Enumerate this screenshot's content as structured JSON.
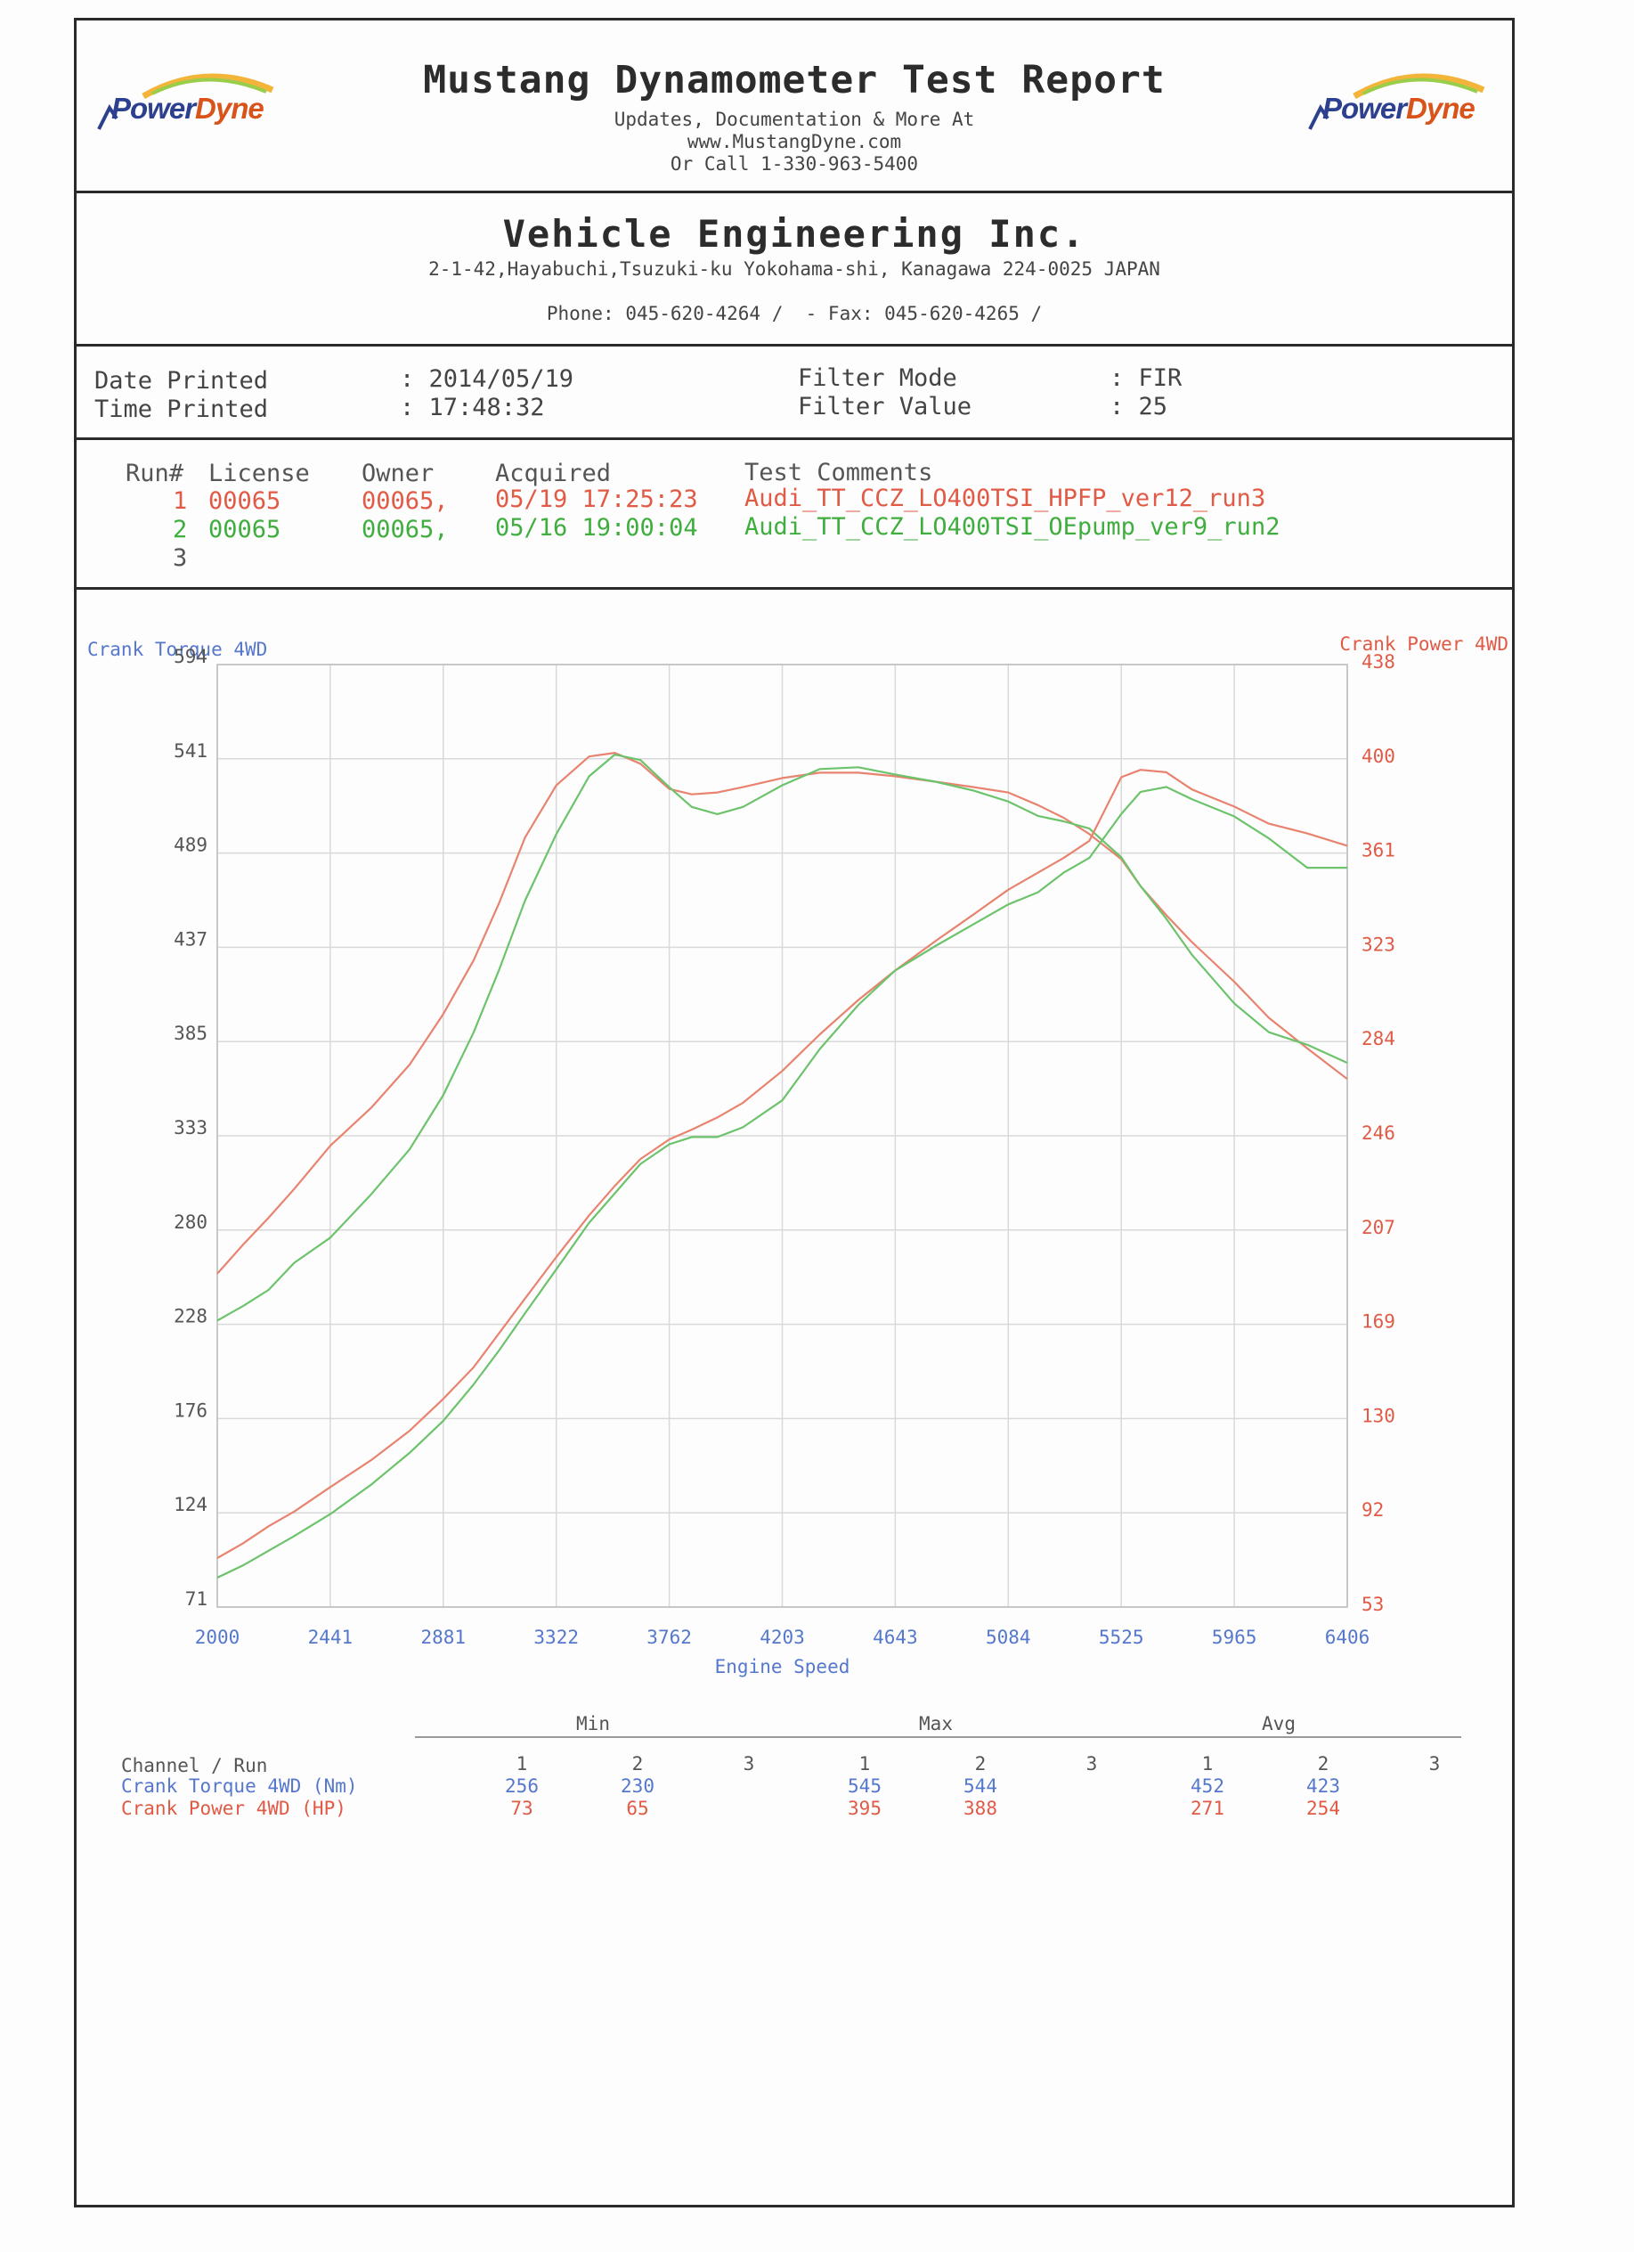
{
  "report": {
    "title": "Mustang Dynamometer Test Report",
    "updates_line": "Updates, Documentation & More At",
    "website": "www.MustangDyne.com",
    "phone_line": "Or Call 1-330-963-5400",
    "logo_left": {
      "part1": "Power",
      "part2": "Dyne"
    },
    "logo_right": {
      "part1": "Power",
      "part2": "Dyne"
    }
  },
  "company": {
    "name": "Vehicle Engineering Inc.",
    "address": "2-1-42,Hayabuchi,Tsuzuki-ku Yokohama-shi, Kanagawa 224-0025 JAPAN",
    "contact": "Phone: 045-620-4264 /  - Fax: 045-620-4265 /"
  },
  "print_info": {
    "date_label": "Date Printed",
    "date_value": ": 2014/05/19",
    "time_label": "Time Printed",
    "time_value": ": 17:48:32",
    "filter_mode_label": "Filter Mode",
    "filter_mode_value": ": FIR",
    "filter_value_label": "Filter Value",
    "filter_value_value": ": 25"
  },
  "runs": {
    "headers": {
      "run": "Run#",
      "license": "License",
      "owner": "Owner",
      "acquired": "Acquired",
      "comments": "Test Comments"
    },
    "rows": [
      {
        "num": "1",
        "license": "00065",
        "owner": "00065,",
        "acquired": "05/19 17:25:23",
        "comment": "Audi_TT_CCZ_LO400TSI_HPFP_ver12_run3",
        "color": "#e05a45"
      },
      {
        "num": "2",
        "license": "00065",
        "owner": "00065,",
        "acquired": "05/16 19:00:04",
        "comment": "Audi_TT_CCZ_LO400TSI_OEpump_ver9_run2",
        "color": "#3fae3f"
      },
      {
        "num": "3",
        "license": "",
        "owner": "",
        "acquired": "",
        "comment": "",
        "color": "#555555"
      }
    ]
  },
  "chart_data": {
    "type": "line",
    "xlabel": "Engine Speed",
    "ylabel_left": "Crank Torque 4WD",
    "ylabel_right": "Crank Power 4WD",
    "xlim": [
      2000,
      6406
    ],
    "ylim_left": [
      71,
      594
    ],
    "ylim_right": [
      53,
      438
    ],
    "x_ticks": [
      "2000",
      "2441",
      "2881",
      "3322",
      "3762",
      "4203",
      "4643",
      "5084",
      "5525",
      "5965",
      "6406"
    ],
    "y_left_ticks": [
      "594",
      "541",
      "489",
      "437",
      "385",
      "333",
      "280",
      "228",
      "176",
      "124",
      "71"
    ],
    "y_right_ticks": [
      "438",
      "400",
      "361",
      "323",
      "284",
      "246",
      "207",
      "169",
      "130",
      "92",
      "53"
    ],
    "grid": true,
    "series": [
      {
        "run": "1",
        "quantity": "torque",
        "axis": "left",
        "color": "#e8836f",
        "x": [
          2000,
          2100,
          2200,
          2300,
          2441,
          2600,
          2750,
          2881,
          3000,
          3100,
          3200,
          3322,
          3450,
          3550,
          3650,
          3762,
          3850,
          3950,
          4050,
          4203,
          4350,
          4500,
          4643,
          4800,
          4950,
          5084,
          5200,
          5300,
          5400,
          5525,
          5600,
          5700,
          5800,
          5965,
          6100,
          6250,
          6406
        ],
        "y": [
          256,
          272,
          287,
          303,
          327,
          348,
          372,
          400,
          430,
          462,
          498,
          527,
          543,
          545,
          539,
          525,
          522,
          523,
          526,
          531,
          534,
          534,
          532,
          529,
          526,
          523,
          516,
          509,
          500,
          486,
          471,
          455,
          440,
          418,
          398,
          381,
          364
        ]
      },
      {
        "run": "2",
        "quantity": "torque",
        "axis": "left",
        "color": "#6cc36c",
        "x": [
          2000,
          2100,
          2200,
          2300,
          2441,
          2600,
          2750,
          2881,
          3000,
          3100,
          3200,
          3322,
          3450,
          3550,
          3650,
          3762,
          3850,
          3950,
          4050,
          4203,
          4350,
          4500,
          4643,
          4800,
          4950,
          5084,
          5200,
          5300,
          5400,
          5525,
          5600,
          5700,
          5800,
          5965,
          6100,
          6250,
          6406
        ],
        "y": [
          230,
          238,
          247,
          262,
          276,
          300,
          325,
          355,
          390,
          425,
          463,
          500,
          532,
          544,
          541,
          526,
          515,
          511,
          515,
          527,
          536,
          537,
          533,
          529,
          524,
          518,
          510,
          507,
          503,
          487,
          471,
          453,
          433,
          406,
          390,
          383,
          373
        ]
      },
      {
        "run": "1",
        "quantity": "power",
        "axis": "right",
        "color": "#e8836f",
        "x": [
          2000,
          2100,
          2200,
          2300,
          2441,
          2600,
          2750,
          2881,
          3000,
          3100,
          3200,
          3322,
          3450,
          3550,
          3650,
          3762,
          3850,
          3950,
          4050,
          4203,
          4350,
          4500,
          4643,
          4800,
          4950,
          5084,
          5200,
          5300,
          5400,
          5525,
          5600,
          5700,
          5800,
          5965,
          6100,
          6250,
          6406
        ],
        "y": [
          73,
          79,
          86,
          92,
          102,
          113,
          125,
          138,
          151,
          165,
          179,
          196,
          213,
          225,
          236,
          244,
          248,
          253,
          259,
          272,
          287,
          301,
          313,
          325,
          336,
          346,
          353,
          359,
          366,
          392,
          395,
          394,
          387,
          380,
          373,
          369,
          364
        ]
      },
      {
        "run": "2",
        "quantity": "power",
        "axis": "right",
        "color": "#6cc36c",
        "x": [
          2000,
          2100,
          2200,
          2300,
          2441,
          2600,
          2750,
          2881,
          3000,
          3100,
          3200,
          3322,
          3450,
          3550,
          3650,
          3762,
          3850,
          3950,
          4050,
          4203,
          4350,
          4500,
          4643,
          4800,
          4950,
          5084,
          5200,
          5300,
          5400,
          5525,
          5600,
          5700,
          5800,
          5965,
          6100,
          6250,
          6406
        ],
        "y": [
          65,
          70,
          76,
          82,
          91,
          103,
          116,
          129,
          144,
          158,
          173,
          191,
          210,
          222,
          234,
          242,
          245,
          245,
          249,
          260,
          281,
          299,
          313,
          323,
          332,
          340,
          345,
          353,
          359,
          377,
          386,
          388,
          383,
          376,
          367,
          355,
          355
        ]
      }
    ]
  },
  "stats": {
    "groups": [
      "Min",
      "Max",
      "Avg"
    ],
    "header_label": "Channel / Run",
    "run_numbers": [
      "1",
      "2",
      "3"
    ],
    "rows": [
      {
        "label": "Crank Torque 4WD (Nm)",
        "color": "#5577cc",
        "min": [
          "256",
          "230"
        ],
        "max": [
          "545",
          "544"
        ],
        "avg": [
          "452",
          "423"
        ]
      },
      {
        "label": "Crank Power 4WD (HP)",
        "color": "#e05a45",
        "min": [
          "73",
          "65"
        ],
        "max": [
          "395",
          "388"
        ],
        "avg": [
          "271",
          "254"
        ]
      }
    ]
  }
}
